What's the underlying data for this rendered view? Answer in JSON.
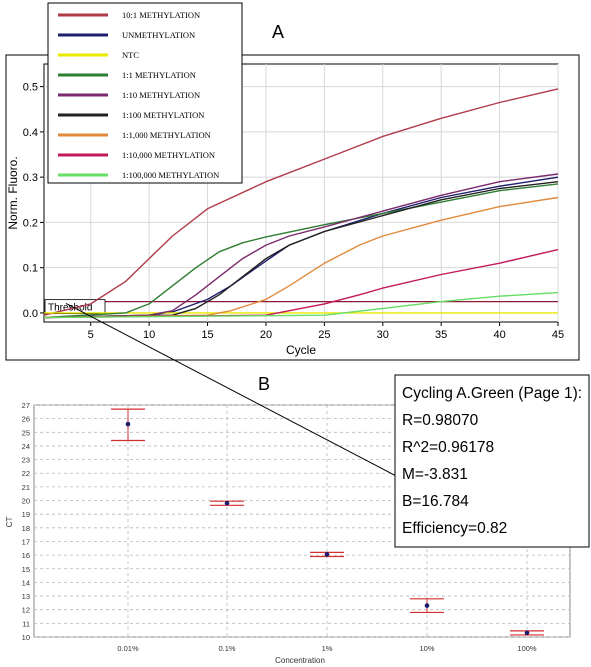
{
  "panels": {
    "a_label": "A",
    "b_label": "B"
  },
  "chart_data": [
    {
      "type": "line",
      "panel": "A",
      "xlabel": "Cycle",
      "ylabel": "Norm. Fluoro.",
      "xlim": [
        1,
        45
      ],
      "ylim": [
        -0.02,
        0.55
      ],
      "x_ticks": [
        5,
        10,
        15,
        20,
        25,
        30,
        35,
        40,
        45
      ],
      "y_ticks": [
        0.0,
        0.1,
        0.2,
        0.3,
        0.4,
        0.5
      ],
      "x_tick_labels": [
        "5",
        "10",
        "15",
        "20",
        "25",
        "30",
        "35",
        "40",
        "45"
      ],
      "y_tick_labels": [
        "0.0",
        "0.1",
        "0.2",
        "0.3",
        "0.4",
        "0.5"
      ],
      "threshold": {
        "label": "Threshold",
        "value": 0.025,
        "color": "#8b1a3a"
      },
      "legend_position": "top-left",
      "series": [
        {
          "name": "10:1 METHYLATION",
          "color": "#b03a48",
          "x": [
            1,
            5,
            8,
            10,
            12,
            15,
            20,
            25,
            30,
            35,
            40,
            45
          ],
          "y": [
            -0.005,
            0.02,
            0.07,
            0.12,
            0.17,
            0.23,
            0.29,
            0.34,
            0.39,
            0.43,
            0.465,
            0.495
          ]
        },
        {
          "name": "UNMETHYLATION",
          "color": "#1e1e6e",
          "x": [
            1,
            10,
            12,
            15,
            17,
            20,
            22,
            25,
            30,
            35,
            40,
            45
          ],
          "y": [
            -0.01,
            -0.005,
            0.002,
            0.03,
            0.06,
            0.115,
            0.15,
            0.18,
            0.22,
            0.255,
            0.28,
            0.3
          ]
        },
        {
          "name": "NTC",
          "color": "#e8e800",
          "x": [
            1,
            45
          ],
          "y": [
            0.0,
            0.0
          ]
        },
        {
          "name": "1:1 METHYLATION",
          "color": "#2e7d32",
          "x": [
            1,
            8,
            10,
            12,
            14,
            16,
            18,
            20,
            25,
            30,
            35,
            40,
            45
          ],
          "y": [
            -0.01,
            0.0,
            0.02,
            0.06,
            0.1,
            0.135,
            0.155,
            0.168,
            0.195,
            0.22,
            0.245,
            0.27,
            0.285
          ]
        },
        {
          "name": "1:10 METHYLATION",
          "color": "#7b2a6e",
          "x": [
            1,
            10,
            12,
            14,
            16,
            18,
            20,
            22,
            25,
            30,
            35,
            40,
            45
          ],
          "y": [
            -0.01,
            -0.005,
            0.005,
            0.04,
            0.08,
            0.12,
            0.15,
            0.17,
            0.19,
            0.225,
            0.26,
            0.29,
            0.307
          ]
        },
        {
          "name": "1:100 METHYLATION",
          "color": "#222222",
          "x": [
            1,
            12,
            14,
            16,
            18,
            20,
            22,
            25,
            30,
            35,
            40,
            45
          ],
          "y": [
            -0.01,
            -0.005,
            0.01,
            0.04,
            0.08,
            0.12,
            0.15,
            0.18,
            0.215,
            0.25,
            0.275,
            0.29
          ]
        },
        {
          "name": "1:1,000 METHYLATION",
          "color": "#e08a3c",
          "x": [
            1,
            15,
            17,
            20,
            22,
            25,
            28,
            30,
            35,
            40,
            45
          ],
          "y": [
            -0.01,
            -0.005,
            0.005,
            0.03,
            0.06,
            0.11,
            0.15,
            0.17,
            0.205,
            0.235,
            0.255
          ]
        },
        {
          "name": "1:10,000 METHYLATION",
          "color": "#c2185b",
          "x": [
            1,
            20,
            25,
            28,
            30,
            35,
            40,
            45
          ],
          "y": [
            -0.01,
            -0.005,
            0.02,
            0.04,
            0.055,
            0.085,
            0.11,
            0.14
          ]
        },
        {
          "name": "1:100,000 METHYLATION",
          "color": "#66dd66",
          "x": [
            1,
            25,
            30,
            35,
            40,
            45
          ],
          "y": [
            -0.01,
            -0.005,
            0.01,
            0.025,
            0.037,
            0.045
          ]
        }
      ]
    },
    {
      "type": "scatter",
      "panel": "B",
      "xlabel": "Concentration",
      "ylabel": "CT",
      "x_scale": "log",
      "x_categories": [
        "0.01%",
        "0.1%",
        "1%",
        "10%",
        "100%"
      ],
      "ylim": [
        10,
        27
      ],
      "y_ticks": [
        10,
        11,
        12,
        13,
        14,
        15,
        16,
        17,
        18,
        19,
        20,
        21,
        22,
        23,
        24,
        25,
        26,
        27
      ],
      "points": [
        {
          "x": "0.01%",
          "y": 25.6,
          "err_low": 24.4,
          "err_high": 26.7
        },
        {
          "x": "0.1%",
          "y": 19.8,
          "err_low": 19.65,
          "err_high": 19.95
        },
        {
          "x": "1%",
          "y": 16.05,
          "err_low": 15.9,
          "err_high": 16.2
        },
        {
          "x": "10%",
          "y": 12.3,
          "err_low": 11.8,
          "err_high": 12.8
        },
        {
          "x": "100%",
          "y": 10.3,
          "err_low": 10.15,
          "err_high": 10.45
        }
      ],
      "fit_line": {
        "slope": -3.831,
        "intercept": 16.784
      },
      "annotation": {
        "title": "Cycling A.Green (Page 1):",
        "lines": [
          "R=0.98070",
          "R^2=0.96178",
          "M=-3.831",
          "B=16.784",
          "Efficiency=0.82"
        ]
      }
    }
  ]
}
